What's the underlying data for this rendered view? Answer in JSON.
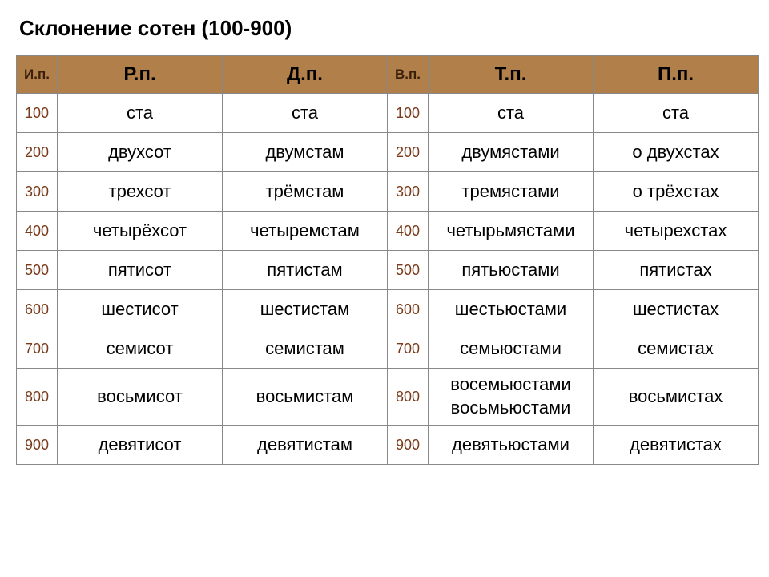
{
  "title": "Склонение сотен (100-900)",
  "headers": {
    "narrow1": "И.п.",
    "wide1": "Р.п.",
    "wide2": "Д.п.",
    "narrow2": "В.п.",
    "wide3": "Т.п.",
    "wide4": "П.п."
  },
  "colors": {
    "header_bg": "#b17f4a",
    "header_text_wide": "#000000",
    "header_text_narrow": "#3a1f0a",
    "num_text": "#7a3b1a",
    "word_text": "#000000",
    "border": "#888888",
    "background": "#ffffff"
  },
  "fontsizes": {
    "title": 26,
    "header_wide": 24,
    "header_narrow": 17,
    "num": 18,
    "word": 22
  },
  "col_widths": {
    "narrow": 50,
    "wide": 205
  },
  "rows": [
    {
      "n1": "100",
      "rp": "ста",
      "dp": "ста",
      "n2": "100",
      "tp": "ста",
      "pp": "ста"
    },
    {
      "n1": "200",
      "rp": "двухсот",
      "dp": "двумстам",
      "n2": "200",
      "tp": "двумястами",
      "pp": "о двухстах"
    },
    {
      "n1": "300",
      "rp": "трехсот",
      "dp": "трёмстам",
      "n2": "300",
      "tp": "тремястами",
      "pp": "о трёхстах"
    },
    {
      "n1": "400",
      "rp": "четырёхсот",
      "dp": "четыремстам",
      "n2": "400",
      "tp": "четырьмястами",
      "pp": "четырехстах"
    },
    {
      "n1": "500",
      "rp": "пятисот",
      "dp": "пятистам",
      "n2": "500",
      "tp": "пятьюстами",
      "pp": "пятистах"
    },
    {
      "n1": "600",
      "rp": "шестисот",
      "dp": "шестистам",
      "n2": "600",
      "tp": "шестьюстами",
      "pp": "шестистах"
    },
    {
      "n1": "700",
      "rp": "семисот",
      "dp": "семистам",
      "n2": "700",
      "tp": "семьюстами",
      "pp": "семистах"
    },
    {
      "n1": "800",
      "rp": "восьмисот",
      "dp": "восьмистам",
      "n2": "800",
      "tp": "восемьюстами\nвосьмьюстами",
      "pp": "восьмистах"
    },
    {
      "n1": "900",
      "rp": "девятисот",
      "dp": "девятистам",
      "n2": "900",
      "tp": "девятьюстами",
      "pp": "девятистах"
    }
  ]
}
